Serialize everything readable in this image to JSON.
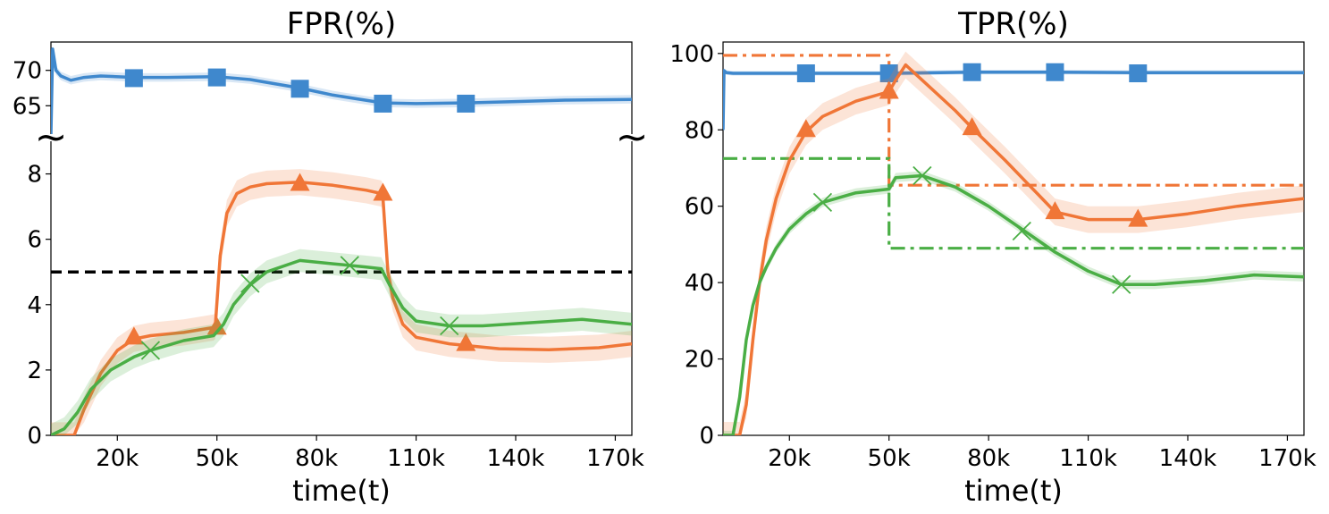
{
  "colors": {
    "blue": "#3f88cd",
    "orange": "#f07637",
    "green": "#4aae45",
    "black": "#000000"
  },
  "chart_data": [
    {
      "type": "line",
      "title": "FPR(%)",
      "xlabel": "time(t)",
      "ylabel": "",
      "xlim": [
        0,
        175000
      ],
      "x_ticks": [
        20000,
        50000,
        80000,
        110000,
        140000,
        170000
      ],
      "x_tick_labels": [
        "20k",
        "50k",
        "80k",
        "110k",
        "140k",
        "170k"
      ],
      "broken_y_axis": true,
      "upper_ylim": [
        61,
        74
      ],
      "upper_y_ticks": [
        65,
        70
      ],
      "upper_y_tick_labels": [
        "65",
        "70"
      ],
      "lower_ylim": [
        0,
        9
      ],
      "lower_y_ticks": [
        0,
        2,
        4,
        6,
        8
      ],
      "lower_y_tick_labels": [
        "0",
        "2",
        "4",
        "6",
        "8"
      ],
      "grid": false,
      "reference_lines": [
        {
          "y": 5,
          "style": "dashed",
          "color": "black"
        }
      ],
      "series": [
        {
          "color": "blue",
          "marker": "square",
          "panel": "upper",
          "x": [
            0,
            500,
            1500,
            3000,
            6000,
            10000,
            15000,
            25000,
            35000,
            50000,
            60000,
            75000,
            85000,
            100000,
            110000,
            125000,
            140000,
            155000,
            175000
          ],
          "y": [
            61,
            73,
            70,
            69.2,
            68.6,
            69,
            69.2,
            69,
            69,
            69.1,
            68.7,
            67.5,
            66.5,
            65.4,
            65.3,
            65.4,
            65.6,
            65.8,
            65.9
          ],
          "band": 0.6,
          "marker_x": [
            25000,
            50000,
            75000,
            100000,
            125000
          ],
          "marker_y": [
            68.9,
            69.0,
            67.4,
            65.3,
            65.3
          ]
        },
        {
          "color": "orange",
          "marker": "triangle",
          "panel": "lower",
          "x": [
            0,
            7000,
            10000,
            15000,
            20000,
            25000,
            30000,
            40000,
            49000,
            49500,
            51000,
            53000,
            56000,
            60000,
            65000,
            75000,
            85000,
            95000,
            99500,
            100000,
            101500,
            103000,
            106000,
            110000,
            120000,
            125000,
            135000,
            150000,
            165000,
            175000
          ],
          "y": [
            0,
            0,
            0.8,
            1.9,
            2.6,
            2.95,
            3.05,
            3.15,
            3.3,
            3.35,
            5.5,
            6.8,
            7.4,
            7.6,
            7.7,
            7.75,
            7.65,
            7.5,
            7.4,
            7.3,
            5.0,
            4.2,
            3.4,
            3.0,
            2.8,
            2.75,
            2.65,
            2.62,
            2.68,
            2.8
          ],
          "band": 0.4,
          "marker_x": [
            25000,
            50000,
            75000,
            100000,
            125000
          ],
          "marker_y": [
            3.0,
            3.3,
            7.7,
            7.4,
            2.8
          ]
        },
        {
          "color": "green",
          "marker": "x",
          "panel": "lower",
          "x": [
            0,
            4000,
            8000,
            12000,
            18000,
            25000,
            30000,
            40000,
            49000,
            52000,
            55000,
            60000,
            65000,
            75000,
            85000,
            95000,
            99500,
            102000,
            106000,
            110000,
            120000,
            130000,
            145000,
            160000,
            175000
          ],
          "y": [
            0,
            0.2,
            0.7,
            1.4,
            2.0,
            2.4,
            2.6,
            2.9,
            3.05,
            3.4,
            4.0,
            4.6,
            5.0,
            5.35,
            5.25,
            5.15,
            5.1,
            4.6,
            3.9,
            3.5,
            3.35,
            3.35,
            3.45,
            3.55,
            3.4
          ],
          "band": 0.35,
          "marker_x": [
            30000,
            60000,
            90000,
            120000
          ],
          "marker_y": [
            2.6,
            4.65,
            5.2,
            3.35
          ]
        }
      ]
    },
    {
      "type": "line",
      "title": "TPR(%)",
      "xlabel": "time(t)",
      "ylabel": "",
      "xlim": [
        0,
        175000
      ],
      "x_ticks": [
        20000,
        50000,
        80000,
        110000,
        140000,
        170000
      ],
      "x_tick_labels": [
        "20k",
        "50k",
        "80k",
        "110k",
        "140k",
        "170k"
      ],
      "ylim": [
        0,
        103
      ],
      "y_ticks": [
        0,
        20,
        40,
        60,
        80,
        100
      ],
      "y_tick_labels": [
        "0",
        "20",
        "40",
        "60",
        "80",
        "100"
      ],
      "grid": false,
      "reference_lines": [
        {
          "color": "orange",
          "style": "dashdot",
          "x": [
            0,
            50000,
            50000,
            175000
          ],
          "y": [
            99.5,
            99.5,
            65.5,
            65.5
          ]
        },
        {
          "color": "green",
          "style": "dashdot",
          "x": [
            0,
            50000,
            50000,
            175000
          ],
          "y": [
            72.5,
            72.5,
            49,
            49
          ]
        }
      ],
      "series": [
        {
          "color": "blue",
          "marker": "square",
          "x": [
            0,
            300,
            1000,
            3000,
            10000,
            25000,
            50000,
            75000,
            100000,
            125000,
            150000,
            175000
          ],
          "y": [
            80,
            95.5,
            95,
            94.8,
            94.8,
            94.8,
            94.8,
            95.1,
            95.1,
            95.0,
            95.0,
            95.0
          ],
          "band": 0.6,
          "marker_x": [
            25000,
            50000,
            75000,
            100000,
            125000
          ],
          "marker_y": [
            94.8,
            94.8,
            95.1,
            95.1,
            94.8
          ]
        },
        {
          "color": "orange",
          "marker": "triangle",
          "x": [
            0,
            5000,
            7000,
            9000,
            11000,
            13000,
            16000,
            20000,
            25000,
            30000,
            40000,
            50000,
            52000,
            55000,
            60000,
            70000,
            75000,
            85000,
            95000,
            100000,
            110000,
            125000,
            140000,
            155000,
            175000
          ],
          "y": [
            0,
            0,
            8,
            25,
            40,
            51,
            62,
            72,
            79.5,
            83.5,
            87.5,
            90,
            93,
            97,
            93,
            85,
            80.5,
            72,
            63,
            58.5,
            56.5,
            56.5,
            58,
            60,
            62
          ],
          "band": 3.5,
          "marker_x": [
            25000,
            50000,
            75000,
            100000,
            125000
          ],
          "marker_y": [
            80.0,
            90.0,
            80.5,
            58.5,
            56.5
          ]
        },
        {
          "color": "green",
          "marker": "x",
          "x": [
            0,
            3000,
            5000,
            7000,
            9000,
            11000,
            13000,
            16000,
            20000,
            25000,
            30000,
            40000,
            50000,
            52000,
            60000,
            70000,
            80000,
            90000,
            100000,
            110000,
            120000,
            130000,
            145000,
            160000,
            175000
          ],
          "y": [
            0,
            0,
            10,
            25,
            34,
            40,
            44,
            49,
            54,
            58,
            61,
            63.5,
            64.5,
            67.5,
            68,
            65,
            60,
            54,
            48,
            43,
            39.5,
            39.5,
            40.5,
            42,
            41.5
          ],
          "band": 1.2,
          "marker_x": [
            30000,
            60000,
            90000,
            120000
          ],
          "marker_y": [
            61,
            68,
            53.5,
            39.5
          ]
        }
      ]
    }
  ]
}
